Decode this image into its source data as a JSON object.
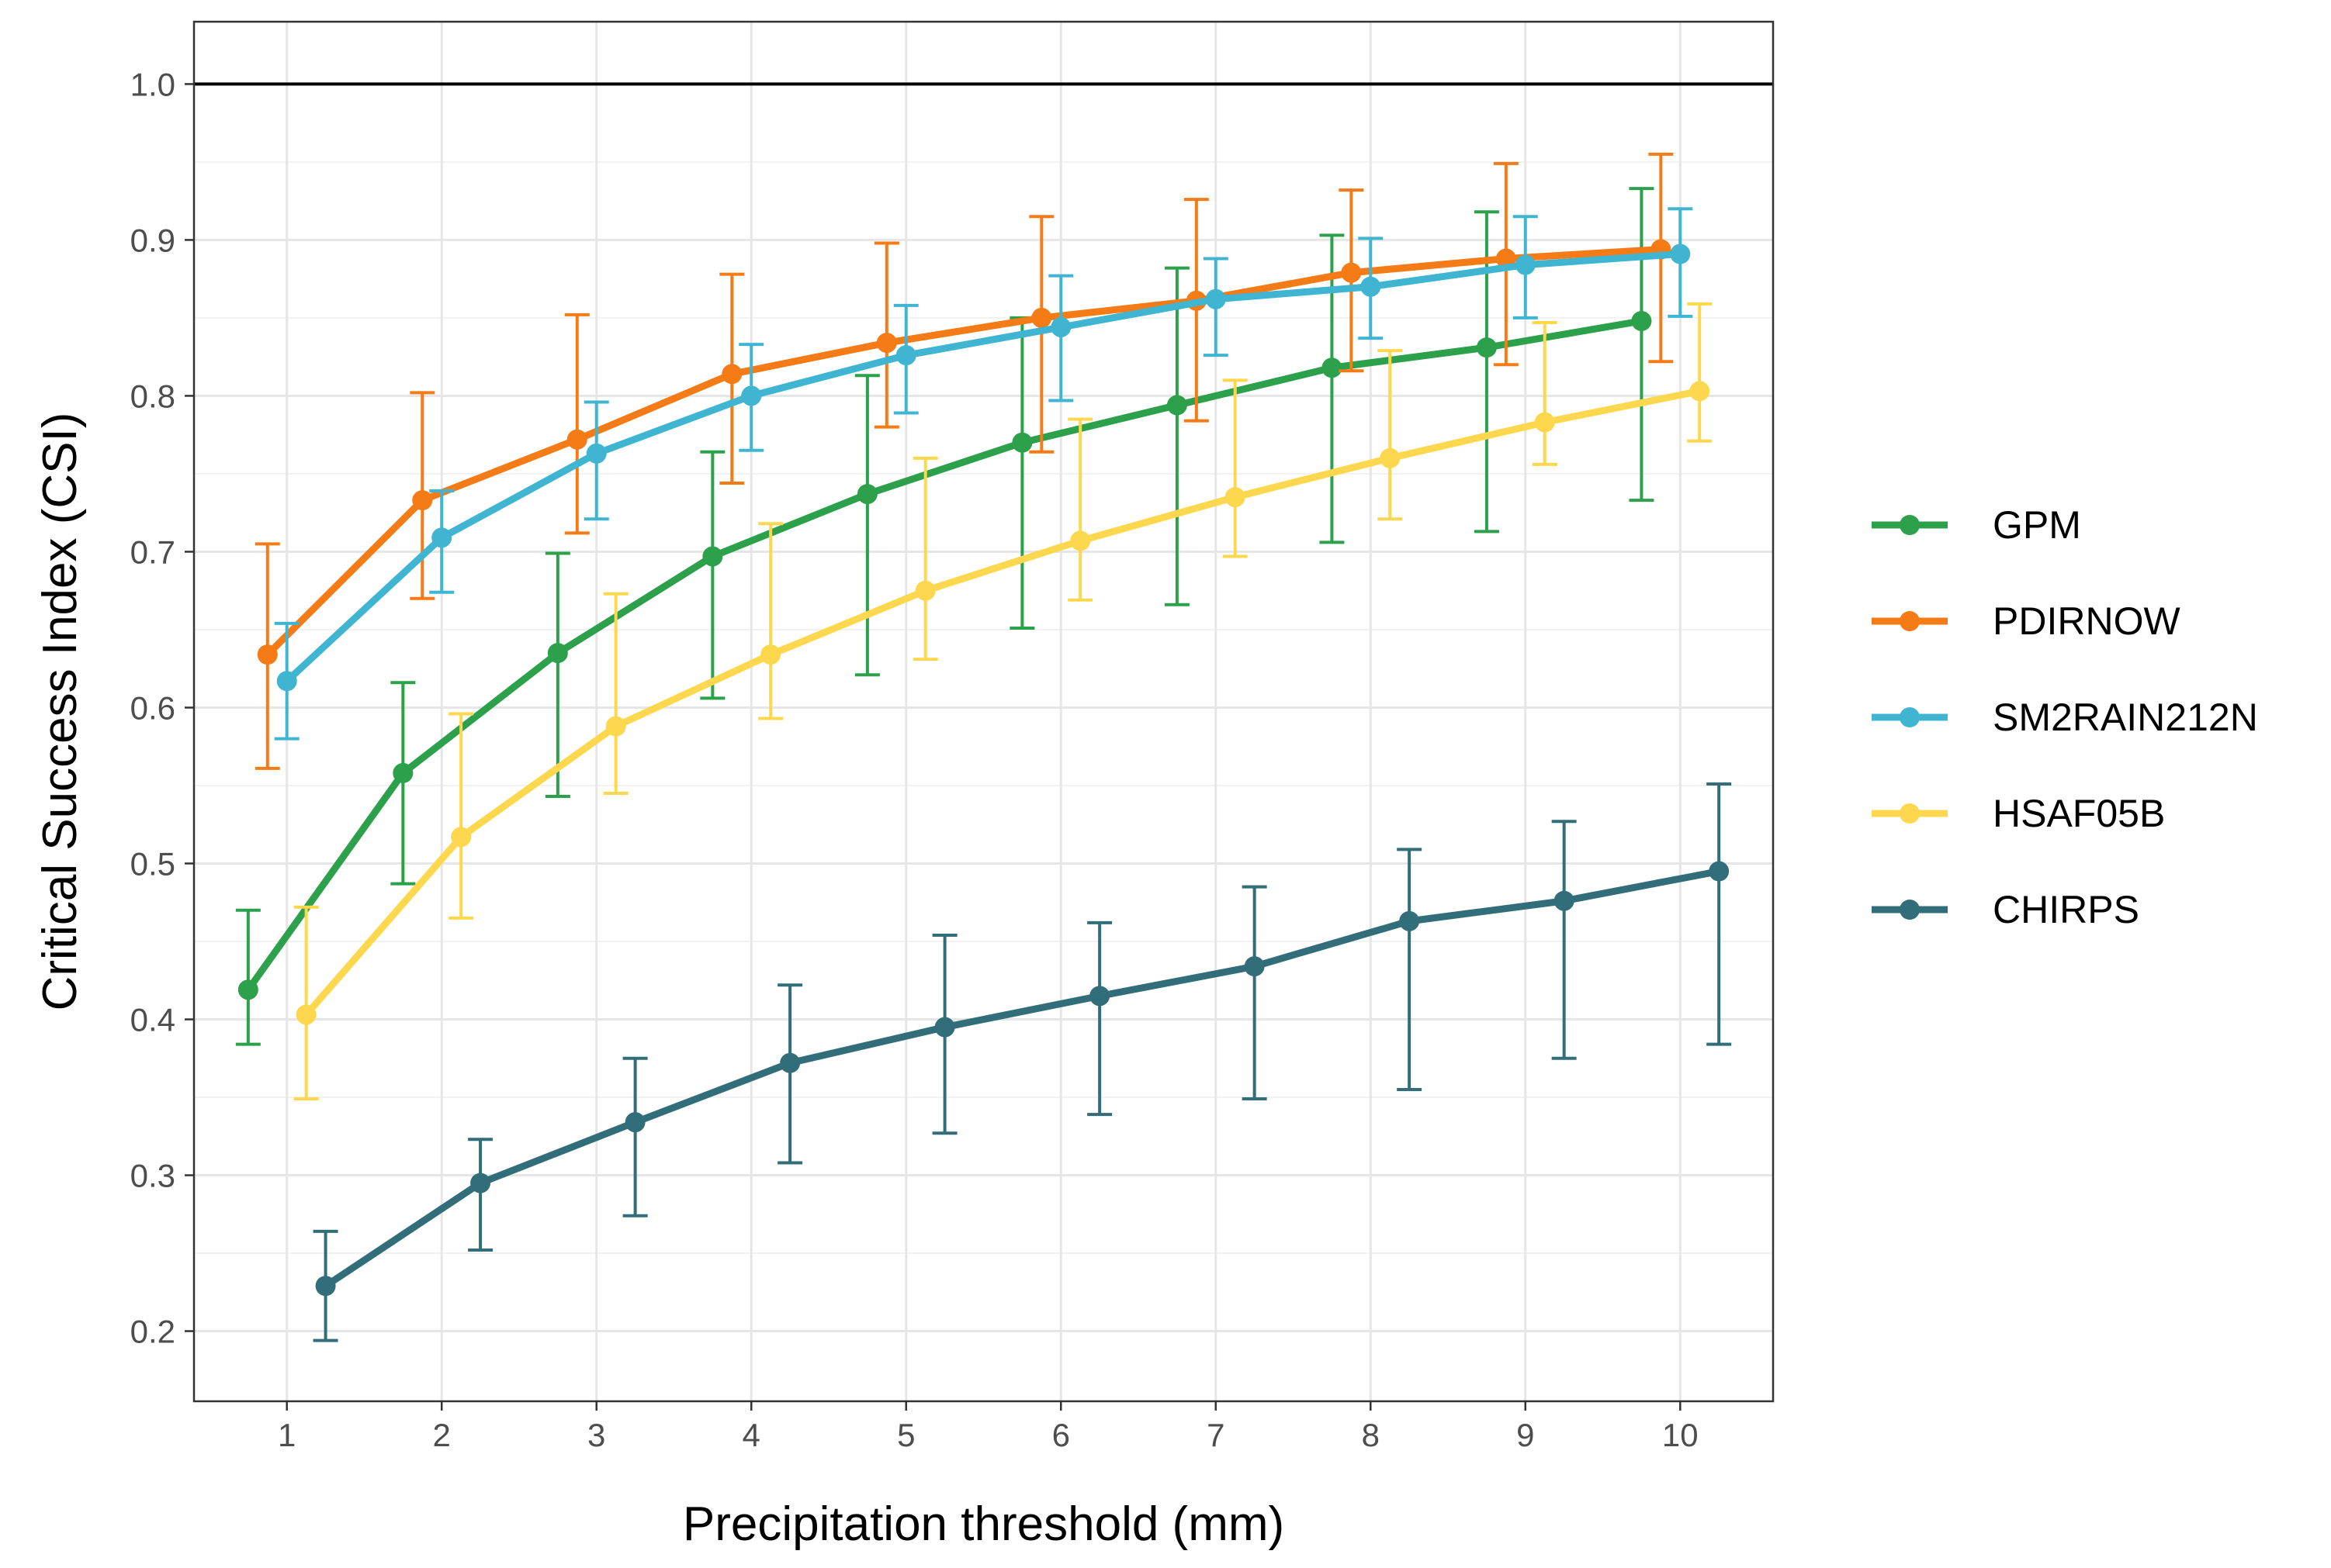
{
  "chart_data": {
    "type": "line",
    "xlabel": "Precipitation threshold (mm)",
    "ylabel": "Critical Success Index (CSI)",
    "x": [
      1,
      2,
      3,
      4,
      5,
      6,
      7,
      8,
      9,
      10
    ],
    "xlim": [
      0.4,
      10.6
    ],
    "ylim": [
      0.155,
      1.04
    ],
    "xticks": [
      "1",
      "2",
      "3",
      "4",
      "5",
      "6",
      "7",
      "8",
      "9",
      "10"
    ],
    "yticks": [
      "0.2",
      "0.3",
      "0.4",
      "0.5",
      "0.6",
      "0.7",
      "0.8",
      "0.9",
      "1.0"
    ],
    "reference_line_y": 1.0,
    "grid": true,
    "legend_position": "right",
    "series": [
      {
        "name": "GPM",
        "color": "#2ca04a",
        "x_offset": -0.25,
        "values": [
          0.419,
          0.558,
          0.635,
          0.697,
          0.737,
          0.77,
          0.794,
          0.818,
          0.831,
          0.848
        ],
        "err_low": [
          0.384,
          0.487,
          0.543,
          0.606,
          0.621,
          0.651,
          0.666,
          0.706,
          0.713,
          0.733
        ],
        "err_high": [
          0.47,
          0.616,
          0.699,
          0.764,
          0.813,
          0.85,
          0.882,
          0.903,
          0.918,
          0.933
        ]
      },
      {
        "name": "PDIRNOW",
        "color": "#f47b16",
        "x_offset": -0.125,
        "values": [
          0.634,
          0.733,
          0.772,
          0.814,
          0.834,
          0.85,
          0.861,
          0.879,
          0.888,
          0.894
        ],
        "err_low": [
          0.561,
          0.67,
          0.712,
          0.744,
          0.78,
          0.764,
          0.784,
          0.816,
          0.82,
          0.822
        ],
        "err_high": [
          0.705,
          0.802,
          0.852,
          0.878,
          0.898,
          0.915,
          0.926,
          0.932,
          0.949,
          0.955
        ]
      },
      {
        "name": "SM2RAIN212N",
        "color": "#40b5d1",
        "x_offset": 0,
        "values": [
          0.617,
          0.709,
          0.763,
          0.8,
          0.826,
          0.844,
          0.862,
          0.87,
          0.884,
          0.891
        ],
        "err_low": [
          0.58,
          0.674,
          0.721,
          0.765,
          0.789,
          0.797,
          0.826,
          0.837,
          0.85,
          0.851
        ],
        "err_high": [
          0.654,
          0.739,
          0.796,
          0.833,
          0.858,
          0.877,
          0.888,
          0.901,
          0.915,
          0.92
        ]
      },
      {
        "name": "HSAF05B",
        "color": "#fdd84e",
        "x_offset": 0.125,
        "values": [
          0.403,
          0.517,
          0.588,
          0.634,
          0.675,
          0.707,
          0.735,
          0.76,
          0.783,
          0.803
        ],
        "err_low": [
          0.349,
          0.465,
          0.545,
          0.593,
          0.631,
          0.669,
          0.697,
          0.721,
          0.756,
          0.771
        ],
        "err_high": [
          0.472,
          0.596,
          0.673,
          0.718,
          0.76,
          0.785,
          0.81,
          0.829,
          0.847,
          0.859
        ]
      },
      {
        "name": "CHIRPS",
        "color": "#326d7a",
        "x_offset": 0.25,
        "values": [
          0.229,
          0.295,
          0.334,
          0.372,
          0.395,
          0.415,
          0.434,
          0.463,
          0.476,
          0.495
        ],
        "err_low": [
          0.194,
          0.252,
          0.274,
          0.308,
          0.327,
          0.339,
          0.349,
          0.355,
          0.375,
          0.384
        ],
        "err_high": [
          0.264,
          0.323,
          0.375,
          0.422,
          0.454,
          0.462,
          0.485,
          0.509,
          0.527,
          0.551
        ]
      }
    ]
  }
}
